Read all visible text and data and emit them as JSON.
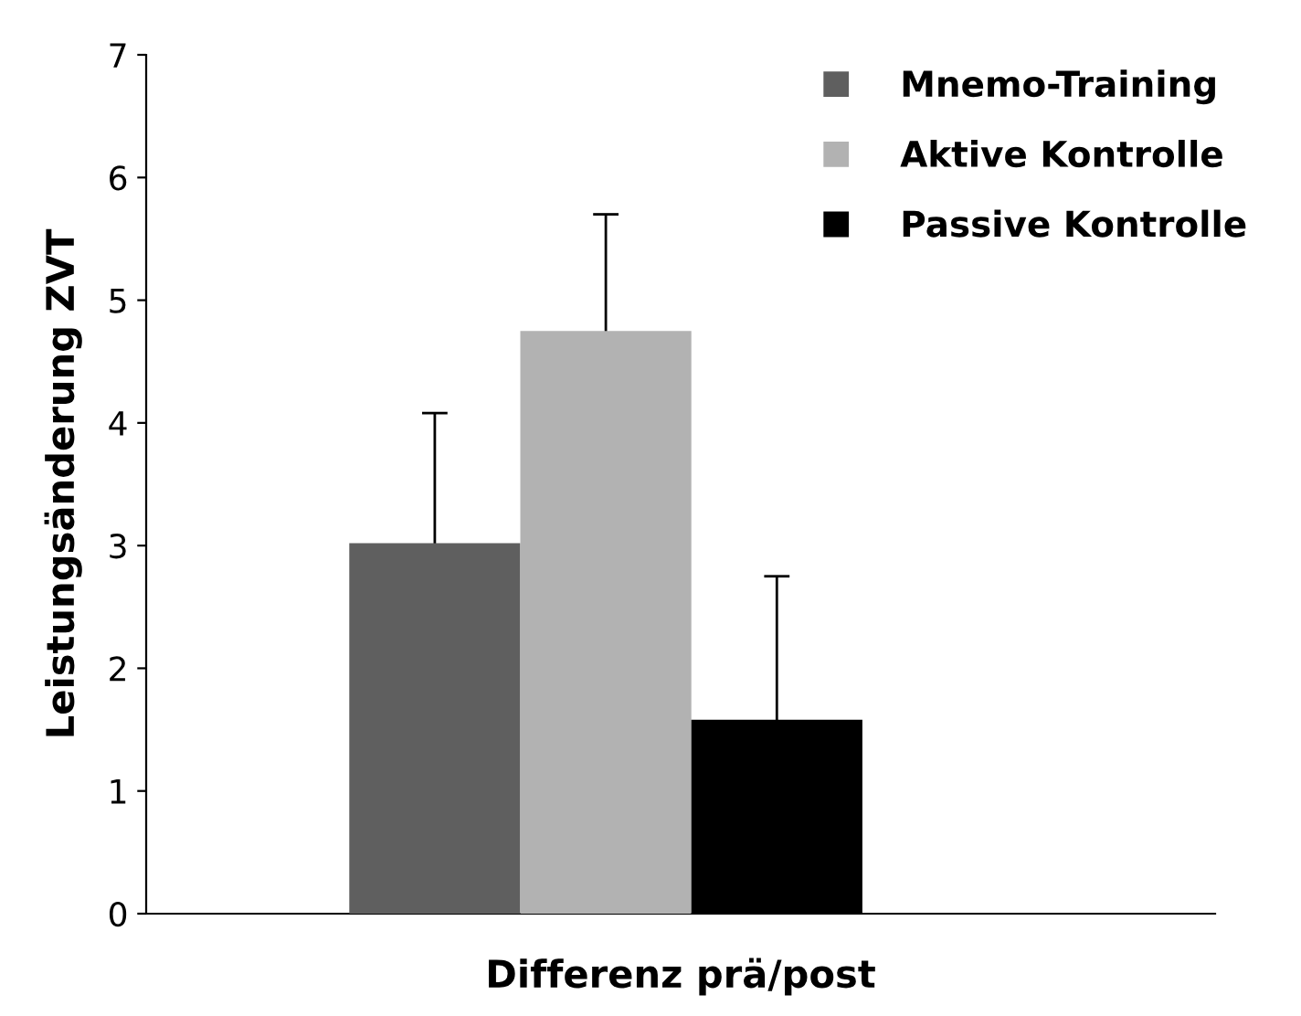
{
  "chart_data": {
    "type": "bar",
    "categories": [
      null
    ],
    "xlabel": "Differenz prä/post",
    "ylabel": "Leistungsänderung ZVT",
    "series": [
      {
        "name": "Mnemo-Training",
        "color": "#5f5f5f",
        "values": [
          3.02
        ],
        "errors": [
          1.06
        ]
      },
      {
        "name": "Aktive Kontrolle",
        "color": "#b2b2b2",
        "values": [
          4.75
        ],
        "errors": [
          0.95
        ]
      },
      {
        "name": "Passive Kontrolle",
        "color": "#000000",
        "values": [
          1.58
        ],
        "errors": [
          1.17
        ]
      }
    ],
    "ylim": [
      0,
      7
    ],
    "yticks": [
      0,
      1,
      2,
      3,
      4,
      5,
      6,
      7
    ],
    "grid": false,
    "legend": "top right"
  }
}
